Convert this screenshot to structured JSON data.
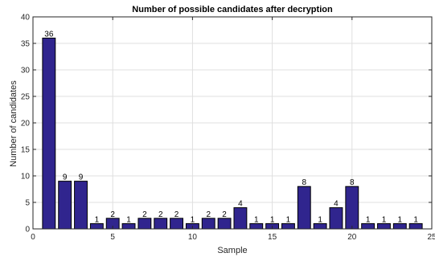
{
  "chart_data": {
    "type": "bar",
    "title": "Number of possible candidates after decryption",
    "xlabel": "Sample",
    "ylabel": "Number of candidates",
    "x": [
      1,
      2,
      3,
      4,
      5,
      6,
      7,
      8,
      9,
      10,
      11,
      12,
      13,
      14,
      15,
      16,
      17,
      18,
      19,
      20,
      21,
      22,
      23,
      24
    ],
    "values": [
      36,
      9,
      9,
      1,
      2,
      1,
      2,
      2,
      2,
      1,
      2,
      2,
      4,
      1,
      1,
      1,
      8,
      1,
      4,
      8,
      1,
      1,
      1,
      1
    ],
    "xlim": [
      0,
      25
    ],
    "ylim": [
      0,
      40
    ],
    "xticks": [
      0,
      5,
      10,
      15,
      20,
      25
    ],
    "yticks": [
      0,
      5,
      10,
      15,
      20,
      25,
      30,
      35,
      40
    ],
    "bar_color": "#30258e",
    "grid": true,
    "data_labels": true
  }
}
